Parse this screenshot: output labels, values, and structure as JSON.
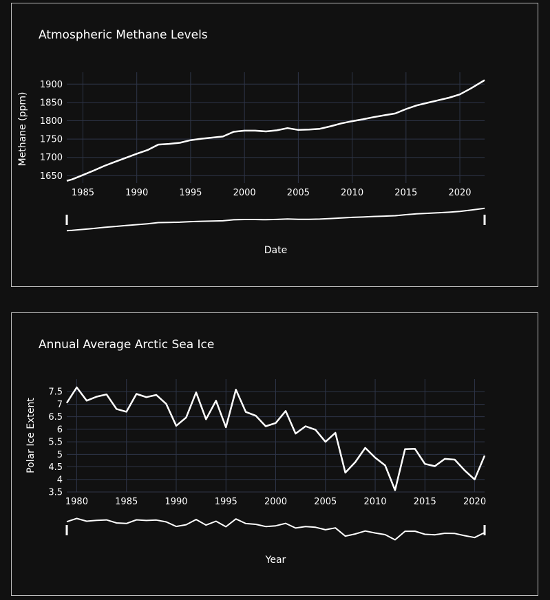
{
  "chart_data": [
    {
      "type": "line",
      "title": "Atmospheric Methane Levels",
      "xlabel": "Date",
      "ylabel": "Methane (ppm)",
      "xlim": [
        1983.5,
        2022.3
      ],
      "ylim": [
        1630,
        1925
      ],
      "xticks": [
        1985,
        1990,
        1995,
        2000,
        2005,
        2010,
        2015,
        2020
      ],
      "yticks": [
        1650,
        1700,
        1750,
        1800,
        1850,
        1900
      ],
      "range_slider": true,
      "grid": true,
      "series": [
        {
          "x": [
            1983.5,
            1984,
            1985,
            1986,
            1987,
            1988,
            1989,
            1990,
            1991,
            1992,
            1993,
            1994,
            1995,
            1996,
            1997,
            1998,
            1999,
            2000,
            2001,
            2002,
            2003,
            2004,
            2005,
            2006,
            2007,
            2008,
            2009,
            2010,
            2011,
            2012,
            2013,
            2014,
            2015,
            2016,
            2017,
            2018,
            2019,
            2020,
            2021,
            2022.3
          ],
          "values": [
            1636,
            1640,
            1652,
            1664,
            1677,
            1688,
            1699,
            1710,
            1720,
            1735,
            1737,
            1740,
            1747,
            1751,
            1754,
            1757,
            1770,
            1773,
            1773,
            1771,
            1774,
            1780,
            1775,
            1776,
            1778,
            1785,
            1793,
            1799,
            1804,
            1810,
            1815,
            1820,
            1832,
            1842,
            1849,
            1856,
            1863,
            1872,
            1888,
            1911
          ]
        }
      ]
    },
    {
      "type": "line",
      "title": "Annual Average Arctic Sea Ice",
      "xlabel": "Year",
      "ylabel": "Polar Ice Extent",
      "xlim": [
        1979,
        2021
      ],
      "ylim": [
        3.5,
        8.0
      ],
      "xticks": [
        1980,
        1985,
        1990,
        1995,
        2000,
        2005,
        2010,
        2015,
        2020
      ],
      "yticks": [
        3.5,
        4,
        4.5,
        5,
        5.5,
        6,
        6.5,
        7,
        7.5
      ],
      "range_slider": true,
      "grid": true,
      "series": [
        {
          "x": [
            1979,
            1980,
            1981,
            1982,
            1983,
            1984,
            1985,
            1986,
            1987,
            1988,
            1989,
            1990,
            1991,
            1992,
            1993,
            1994,
            1995,
            1996,
            1997,
            1998,
            1999,
            2000,
            2001,
            2002,
            2003,
            2004,
            2005,
            2006,
            2007,
            2008,
            2009,
            2010,
            2011,
            2012,
            2013,
            2014,
            2015,
            2016,
            2017,
            2018,
            2019,
            2020,
            2021
          ],
          "values": [
            7.05,
            7.67,
            7.14,
            7.3,
            7.39,
            6.81,
            6.7,
            7.41,
            7.28,
            7.37,
            7.01,
            6.14,
            6.47,
            7.47,
            6.4,
            7.14,
            6.08,
            7.58,
            6.69,
            6.54,
            6.12,
            6.25,
            6.73,
            5.83,
            6.12,
            5.98,
            5.5,
            5.86,
            4.27,
            4.69,
            5.26,
            4.87,
            4.56,
            3.57,
            5.21,
            5.22,
            4.62,
            4.53,
            4.82,
            4.79,
            4.36,
            4.0,
            4.95
          ]
        }
      ]
    }
  ]
}
